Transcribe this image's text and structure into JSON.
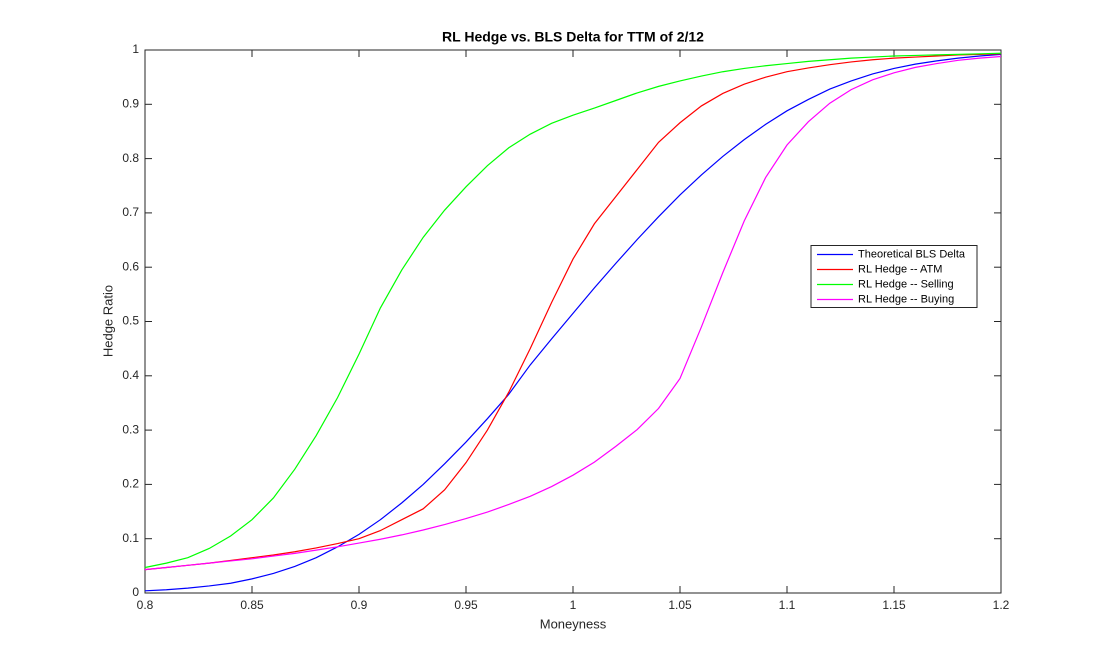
{
  "chart_data": {
    "type": "line",
    "title": "RL Hedge vs. BLS Delta for TTM of 2/12",
    "x_label": "Moneyness",
    "y_label": "Hedge Ratio",
    "x": [
      0.8,
      0.81,
      0.82,
      0.83,
      0.84,
      0.85,
      0.86,
      0.87,
      0.88,
      0.89,
      0.9,
      0.91,
      0.92,
      0.93,
      0.94,
      0.95,
      0.96,
      0.97,
      0.98,
      0.99,
      1.0,
      1.01,
      1.02,
      1.03,
      1.04,
      1.05,
      1.06,
      1.07,
      1.08,
      1.09,
      1.1,
      1.11,
      1.12,
      1.13,
      1.14,
      1.15,
      1.16,
      1.17,
      1.18,
      1.19,
      1.2
    ],
    "series": [
      {
        "name": "Theoretical BLS Delta",
        "color": "#0000ff",
        "values": [
          0.004,
          0.006,
          0.009,
          0.013,
          0.018,
          0.026,
          0.036,
          0.049,
          0.065,
          0.085,
          0.108,
          0.135,
          0.166,
          0.2,
          0.238,
          0.278,
          0.321,
          0.366,
          0.42,
          0.468,
          0.515,
          0.562,
          0.607,
          0.651,
          0.693,
          0.733,
          0.77,
          0.804,
          0.835,
          0.863,
          0.888,
          0.909,
          0.928,
          0.943,
          0.956,
          0.966,
          0.974,
          0.98,
          0.985,
          0.989,
          0.992
        ]
      },
      {
        "name": "RL Hedge -- ATM",
        "color": "#ff0000",
        "values": [
          0.043,
          0.047,
          0.051,
          0.055,
          0.06,
          0.065,
          0.07,
          0.076,
          0.083,
          0.091,
          0.1,
          0.115,
          0.135,
          0.155,
          0.19,
          0.24,
          0.3,
          0.37,
          0.45,
          0.535,
          0.615,
          0.68,
          0.73,
          0.78,
          0.83,
          0.866,
          0.897,
          0.92,
          0.937,
          0.95,
          0.96,
          0.967,
          0.973,
          0.978,
          0.982,
          0.985,
          0.987,
          0.989,
          0.991,
          0.992,
          0.993
        ]
      },
      {
        "name": "RL Hedge -- Selling",
        "color": "#00ff00",
        "values": [
          0.047,
          0.055,
          0.065,
          0.082,
          0.105,
          0.135,
          0.175,
          0.228,
          0.29,
          0.36,
          0.44,
          0.525,
          0.595,
          0.655,
          0.705,
          0.748,
          0.787,
          0.82,
          0.845,
          0.865,
          0.88,
          0.893,
          0.907,
          0.921,
          0.933,
          0.943,
          0.952,
          0.96,
          0.966,
          0.971,
          0.975,
          0.979,
          0.982,
          0.985,
          0.987,
          0.989,
          0.99,
          0.991,
          0.992,
          0.993,
          0.994
        ]
      },
      {
        "name": "RL Hedge -- Buying",
        "color": "#ff00ff",
        "values": [
          0.043,
          0.047,
          0.051,
          0.055,
          0.059,
          0.063,
          0.068,
          0.073,
          0.079,
          0.085,
          0.092,
          0.099,
          0.107,
          0.116,
          0.126,
          0.137,
          0.149,
          0.163,
          0.178,
          0.196,
          0.217,
          0.241,
          0.27,
          0.301,
          0.34,
          0.395,
          0.49,
          0.59,
          0.685,
          0.765,
          0.825,
          0.868,
          0.902,
          0.927,
          0.945,
          0.958,
          0.968,
          0.975,
          0.981,
          0.985,
          0.988
        ]
      }
    ],
    "xlim": [
      0.8,
      1.2
    ],
    "xticks": [
      0.8,
      0.85,
      0.9,
      0.95,
      1,
      1.05,
      1.1,
      1.15,
      1.2
    ],
    "ylim": [
      0,
      1
    ],
    "yticks": [
      0,
      0.1,
      0.2,
      0.3,
      0.4,
      0.5,
      0.6,
      0.7,
      0.8,
      0.9,
      1
    ],
    "grid": false,
    "legend": "right"
  }
}
